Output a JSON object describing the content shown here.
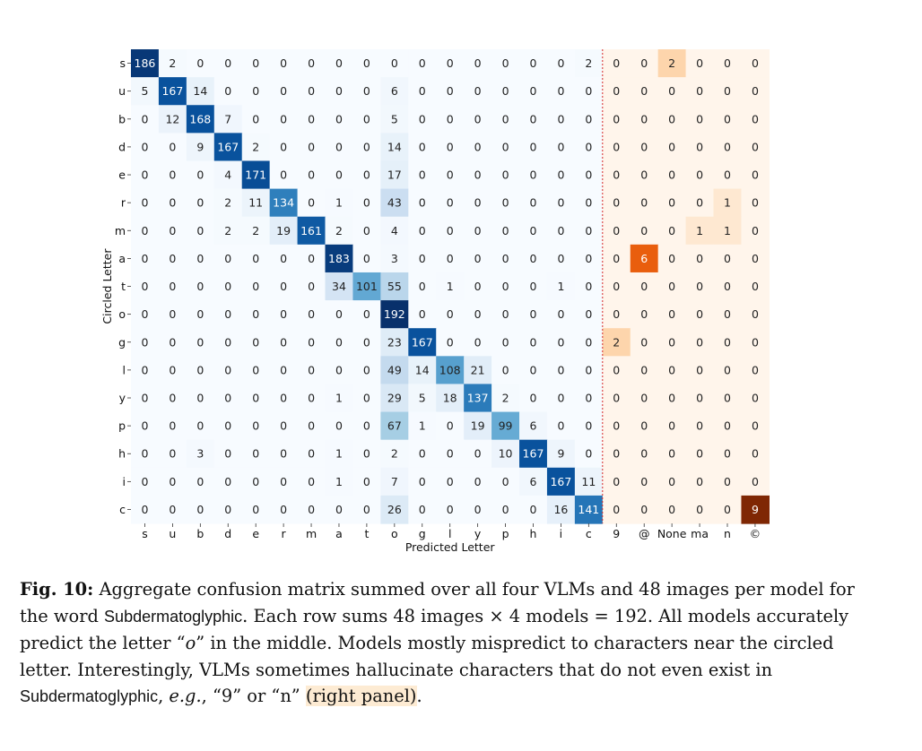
{
  "chart_data": {
    "type": "heatmap",
    "xlabel": "Predicted Letter",
    "ylabel": "Circled Letter",
    "row_labels": [
      "s",
      "u",
      "b",
      "d",
      "e",
      "r",
      "m",
      "a",
      "t",
      "o",
      "g",
      "l",
      "y",
      "p",
      "h",
      "i",
      "c"
    ],
    "col_labels": [
      "s",
      "u",
      "b",
      "d",
      "e",
      "r",
      "m",
      "a",
      "t",
      "o",
      "g",
      "l",
      "y",
      "p",
      "h",
      "i",
      "c",
      "9",
      "@",
      "None",
      "ma",
      "n",
      "©"
    ],
    "main_panel_columns": 17,
    "right_panel_columns": 6,
    "colormaps": {
      "main": [
        "#f7fbff",
        "#08306b"
      ],
      "right_panel": [
        "#fff5eb",
        "#7f2704"
      ]
    },
    "divider_color": "#d62728",
    "values": [
      [
        186,
        2,
        0,
        0,
        0,
        0,
        0,
        0,
        0,
        0,
        0,
        0,
        0,
        0,
        0,
        0,
        2,
        0,
        0,
        2,
        0,
        0,
        0
      ],
      [
        5,
        167,
        14,
        0,
        0,
        0,
        0,
        0,
        0,
        6,
        0,
        0,
        0,
        0,
        0,
        0,
        0,
        0,
        0,
        0,
        0,
        0,
        0
      ],
      [
        0,
        12,
        168,
        7,
        0,
        0,
        0,
        0,
        0,
        5,
        0,
        0,
        0,
        0,
        0,
        0,
        0,
        0,
        0,
        0,
        0,
        0,
        0
      ],
      [
        0,
        0,
        9,
        167,
        2,
        0,
        0,
        0,
        0,
        14,
        0,
        0,
        0,
        0,
        0,
        0,
        0,
        0,
        0,
        0,
        0,
        0,
        0
      ],
      [
        0,
        0,
        0,
        4,
        171,
        0,
        0,
        0,
        0,
        17,
        0,
        0,
        0,
        0,
        0,
        0,
        0,
        0,
        0,
        0,
        0,
        0,
        0
      ],
      [
        0,
        0,
        0,
        2,
        11,
        134,
        0,
        1,
        0,
        43,
        0,
        0,
        0,
        0,
        0,
        0,
        0,
        0,
        0,
        0,
        0,
        1,
        0
      ],
      [
        0,
        0,
        0,
        2,
        2,
        19,
        161,
        2,
        0,
        4,
        0,
        0,
        0,
        0,
        0,
        0,
        0,
        0,
        0,
        0,
        1,
        1,
        0
      ],
      [
        0,
        0,
        0,
        0,
        0,
        0,
        0,
        183,
        0,
        3,
        0,
        0,
        0,
        0,
        0,
        0,
        0,
        0,
        6,
        0,
        0,
        0,
        0
      ],
      [
        0,
        0,
        0,
        0,
        0,
        0,
        0,
        34,
        101,
        55,
        0,
        1,
        0,
        0,
        0,
        1,
        0,
        0,
        0,
        0,
        0,
        0,
        0
      ],
      [
        0,
        0,
        0,
        0,
        0,
        0,
        0,
        0,
        0,
        192,
        0,
        0,
        0,
        0,
        0,
        0,
        0,
        0,
        0,
        0,
        0,
        0,
        0
      ],
      [
        0,
        0,
        0,
        0,
        0,
        0,
        0,
        0,
        0,
        23,
        167,
        0,
        0,
        0,
        0,
        0,
        0,
        2,
        0,
        0,
        0,
        0,
        0
      ],
      [
        0,
        0,
        0,
        0,
        0,
        0,
        0,
        0,
        0,
        49,
        14,
        108,
        21,
        0,
        0,
        0,
        0,
        0,
        0,
        0,
        0,
        0,
        0
      ],
      [
        0,
        0,
        0,
        0,
        0,
        0,
        0,
        1,
        0,
        29,
        5,
        18,
        137,
        2,
        0,
        0,
        0,
        0,
        0,
        0,
        0,
        0,
        0
      ],
      [
        0,
        0,
        0,
        0,
        0,
        0,
        0,
        0,
        0,
        67,
        1,
        0,
        19,
        99,
        6,
        0,
        0,
        0,
        0,
        0,
        0,
        0,
        0
      ],
      [
        0,
        0,
        3,
        0,
        0,
        0,
        0,
        1,
        0,
        2,
        0,
        0,
        0,
        10,
        167,
        9,
        0,
        0,
        0,
        0,
        0,
        0,
        0
      ],
      [
        0,
        0,
        0,
        0,
        0,
        0,
        0,
        1,
        0,
        7,
        0,
        0,
        0,
        0,
        6,
        167,
        11,
        0,
        0,
        0,
        0,
        0,
        0
      ],
      [
        0,
        0,
        0,
        0,
        0,
        0,
        0,
        0,
        0,
        26,
        0,
        0,
        0,
        0,
        0,
        16,
        141,
        0,
        0,
        0,
        0,
        0,
        9
      ]
    ]
  },
  "caption": {
    "label": "Fig. 10:",
    "t1": " Aggregate confusion matrix summed over all four VLMs and 48 images per model for the word ",
    "word1": "Subdermatoglyphic",
    "t2": ". Each row sums 48 images × 4 models = 192. All models accurately predict the letter “",
    "letter_o": "o",
    "t3": "” in the middle. Models mostly mispredict to characters near the circled letter. Interestingly, VLMs sometimes hallucinate characters that do not even exist in ",
    "word2": "Subdermatoglyphic",
    "t4": ", ",
    "eg": "e.g.",
    "t5": ", “9” or “n” ",
    "highlight": "(right panel)",
    "t6": "."
  }
}
